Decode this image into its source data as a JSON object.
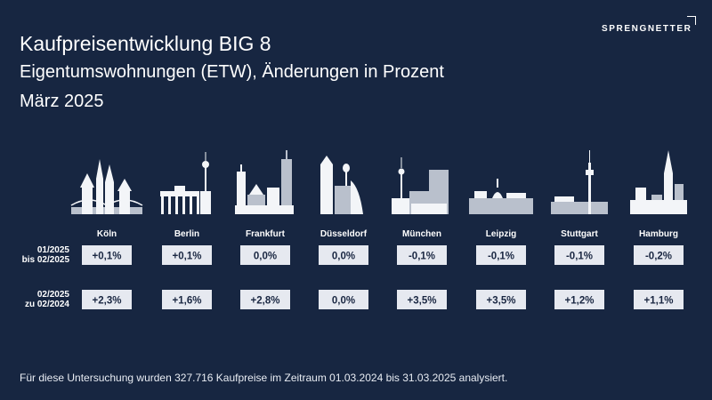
{
  "header": {
    "title": "Kaufpreisentwicklung BIG 8",
    "subtitle": "Eigentumswohnungen (ETW), Änderungen in Prozent",
    "period": "März 2025"
  },
  "brand": {
    "logo_text": "SPRENGNETTER"
  },
  "colors": {
    "background": "#172641",
    "cell_background": "#e6e9f0",
    "cell_text": "#1a2742",
    "skyline_front": "#f3f5f8",
    "skyline_back": "#b9c0cc"
  },
  "chart_data": {
    "type": "table",
    "categories": [
      "Köln",
      "Berlin",
      "Frankfurt",
      "Düsseldorf",
      "München",
      "Leipzig",
      "Stuttgart",
      "Hamburg"
    ],
    "icons": [
      "cologne-skyline-icon",
      "berlin-skyline-icon",
      "frankfurt-skyline-icon",
      "duesseldorf-skyline-icon",
      "munich-skyline-icon",
      "leipzig-skyline-icon",
      "stuttgart-skyline-icon",
      "hamburg-skyline-icon"
    ],
    "series": [
      {
        "name_lines": [
          "01/2025",
          "bis 02/2025"
        ],
        "values": [
          0.1,
          0.1,
          0.0,
          0.0,
          -0.1,
          -0.1,
          -0.1,
          -0.2
        ],
        "labels": [
          "+0,1%",
          "+0,1%",
          "0,0%",
          "0,0%",
          "-0,1%",
          "-0,1%",
          "-0,1%",
          "-0,2%"
        ]
      },
      {
        "name_lines": [
          "02/2025",
          "zu 02/2024"
        ],
        "values": [
          2.3,
          1.6,
          2.8,
          0.0,
          3.5,
          3.5,
          1.2,
          1.1
        ],
        "labels": [
          "+2,3%",
          "+1,6%",
          "+2,8%",
          "0,0%",
          "+3,5%",
          "+3,5%",
          "+1,2%",
          "+1,1%"
        ]
      }
    ]
  },
  "footnote": "Für diese Untersuchung wurden 327.716 Kaufpreise im Zeitraum 01.03.2024 bis 31.03.2025 analysiert."
}
